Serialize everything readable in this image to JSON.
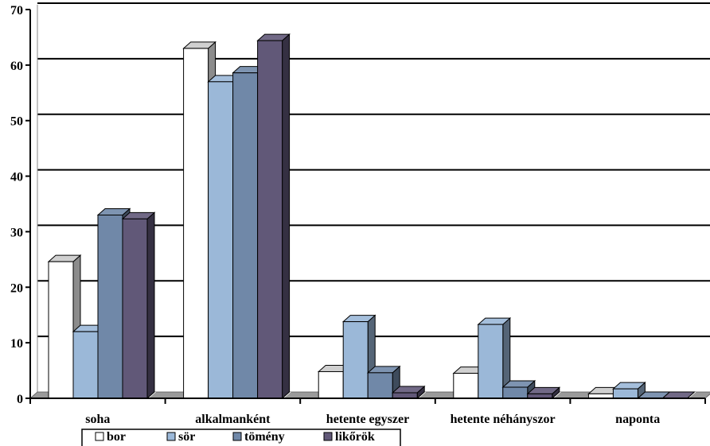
{
  "chart_data": {
    "type": "bar",
    "title": "",
    "xlabel": "",
    "ylabel": "",
    "ylim": [
      0,
      70
    ],
    "yticks": [
      0,
      10,
      20,
      30,
      40,
      50,
      60,
      70
    ],
    "grid": true,
    "legend_position": "bottom",
    "categories": [
      "soha",
      "alkalmanként",
      "hetente egyszer",
      "hetente néhányszor",
      "naponta"
    ],
    "series": [
      {
        "name": "bor",
        "color": "#ffffff",
        "values": [
          24.6,
          63.0,
          4.8,
          4.5,
          0.8
        ]
      },
      {
        "name": "sör",
        "color": "#9bb8d8",
        "values": [
          12.0,
          57.0,
          13.8,
          13.3,
          1.7
        ]
      },
      {
        "name": "tömény",
        "color": "#7088a8",
        "values": [
          33.0,
          58.6,
          4.6,
          2.0,
          0.0
        ]
      },
      {
        "name": "likőrök",
        "color": "#615878",
        "values": [
          32.3,
          64.4,
          1.0,
          0.8,
          0.0
        ]
      }
    ]
  }
}
